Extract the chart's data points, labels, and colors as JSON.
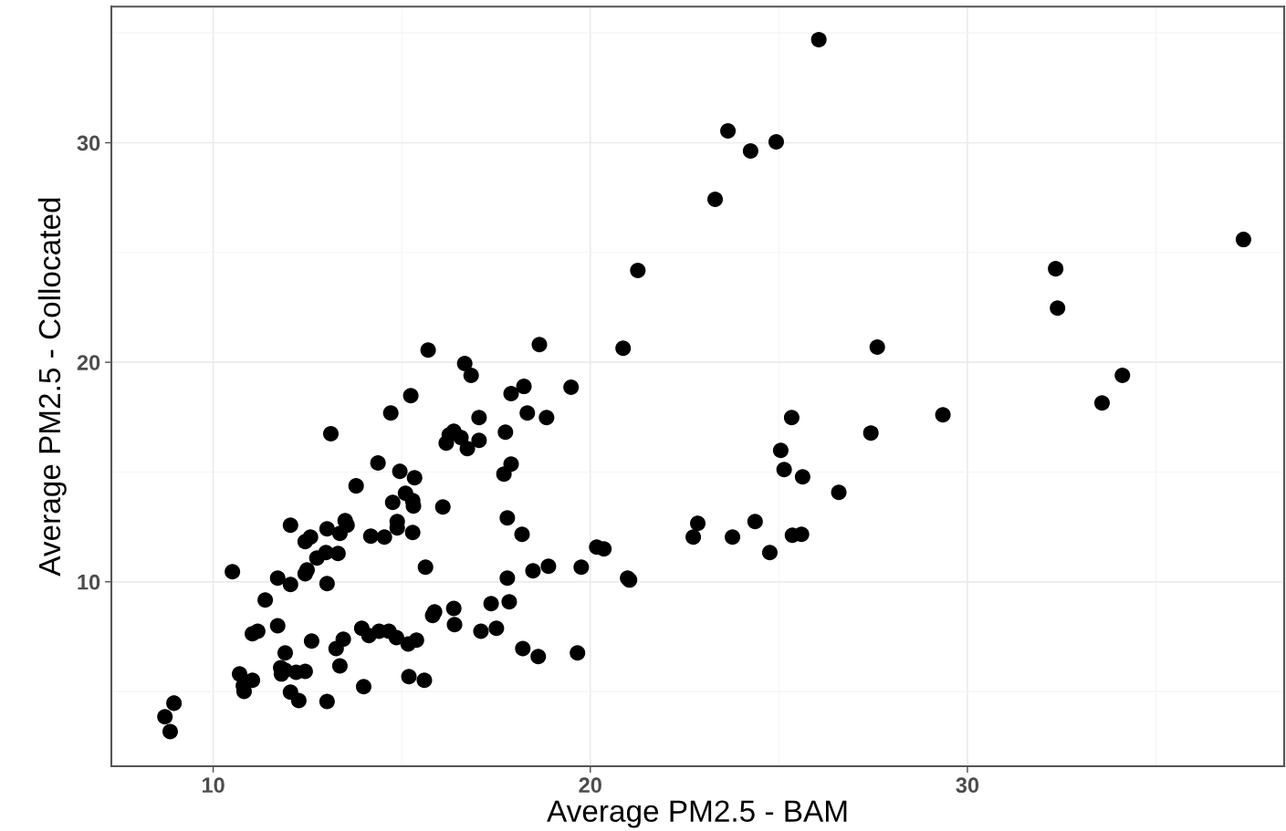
{
  "chart_data": {
    "type": "scatter",
    "xlabel": "Average PM2.5 - BAM",
    "ylabel": "Average PM2.5 - Collocated",
    "xlim": [
      7.3,
      38.4
    ],
    "ylim": [
      1.6,
      36.2
    ],
    "xticks": [
      10,
      20,
      30
    ],
    "yticks": [
      10,
      20,
      30
    ],
    "grid": true,
    "marker": "circle",
    "series": [
      {
        "color": "#000000",
        "x": [
          8.72,
          8.96,
          8.86,
          10.51,
          10.7,
          10.82,
          10.8,
          11.04,
          11.04,
          11.18,
          11.38,
          11.71,
          11.71,
          11.91,
          11.81,
          11.91,
          12.05,
          12.05,
          12.05,
          12.27,
          12.2,
          12.44,
          12.44,
          12.49,
          12.44,
          12.58,
          12.61,
          12.75,
          13.02,
          13.02,
          13.02,
          13.12,
          13.26,
          13.36,
          13.31,
          13.36,
          13.45,
          13.5,
          13.79,
          13.99,
          13.94,
          14.13,
          14.18,
          14.37,
          14.54,
          14.66,
          14.71,
          14.76,
          14.88,
          14.86,
          14.95,
          15.1,
          15.17,
          15.19,
          15.24,
          15.29,
          15.34,
          15.29,
          15.39,
          15.6,
          15.63,
          15.7,
          15.82,
          15.87,
          16.09,
          16.18,
          16.26,
          16.38,
          16.38,
          16.4,
          16.57,
          16.67,
          16.74,
          16.84,
          17.05,
          17.05,
          17.1,
          17.37,
          17.51,
          17.75,
          17.71,
          17.8,
          17.8,
          17.85,
          17.9,
          17.9,
          18.21,
          18.24,
          18.19,
          18.33,
          18.48,
          18.65,
          18.62,
          18.84,
          18.89,
          19.49,
          19.66,
          19.76,
          20.17,
          20.36,
          20.87,
          20.99,
          21.04,
          21.26,
          22.73,
          22.85,
          23.31,
          23.65,
          23.77,
          24.25,
          24.37,
          24.76,
          24.93,
          25.05,
          25.14,
          25.34,
          25.36,
          25.6,
          25.63,
          26.06,
          26.59,
          27.44,
          27.61,
          29.35,
          32.34,
          32.39,
          33.57,
          34.11,
          37.32,
          15.31,
          13.55,
          12.99,
          14.4,
          11.79,
          14.88
        ],
        "values": [
          3.85,
          4.47,
          3.18,
          10.46,
          5.8,
          5.01,
          5.26,
          5.51,
          7.63,
          7.75,
          9.17,
          10.17,
          8.0,
          6.76,
          5.8,
          5.97,
          12.58,
          9.88,
          4.97,
          4.59,
          5.88,
          5.92,
          10.37,
          10.54,
          11.83,
          12.04,
          7.3,
          11.08,
          9.92,
          4.55,
          12.41,
          16.74,
          6.96,
          6.17,
          11.29,
          12.2,
          7.38,
          12.79,
          14.37,
          5.22,
          7.88,
          7.55,
          12.08,
          15.41,
          12.04,
          7.75,
          17.69,
          13.62,
          12.74,
          7.46,
          15.03,
          14.03,
          7.17,
          5.68,
          18.48,
          12.25,
          14.74,
          13.7,
          7.34,
          5.51,
          10.67,
          20.56,
          8.46,
          8.63,
          13.41,
          16.32,
          16.69,
          16.86,
          8.79,
          8.05,
          16.57,
          19.94,
          16.07,
          19.4,
          17.48,
          16.44,
          7.75,
          9.0,
          7.88,
          16.82,
          14.91,
          12.91,
          10.17,
          9.09,
          15.36,
          18.57,
          6.96,
          18.9,
          12.16,
          17.69,
          10.5,
          20.81,
          6.59,
          17.48,
          10.71,
          18.86,
          6.76,
          10.67,
          11.58,
          11.5,
          20.64,
          10.17,
          10.08,
          24.18,
          12.04,
          12.66,
          27.42,
          30.54,
          12.04,
          29.63,
          12.74,
          11.33,
          30.04,
          15.99,
          15.11,
          17.48,
          12.12,
          12.16,
          14.78,
          34.7,
          14.07,
          16.78,
          20.69,
          17.61,
          24.26,
          22.47,
          18.15,
          19.4,
          25.59,
          13.45,
          12.58,
          11.33,
          7.75,
          6.09,
          12.45
        ]
      }
    ]
  }
}
